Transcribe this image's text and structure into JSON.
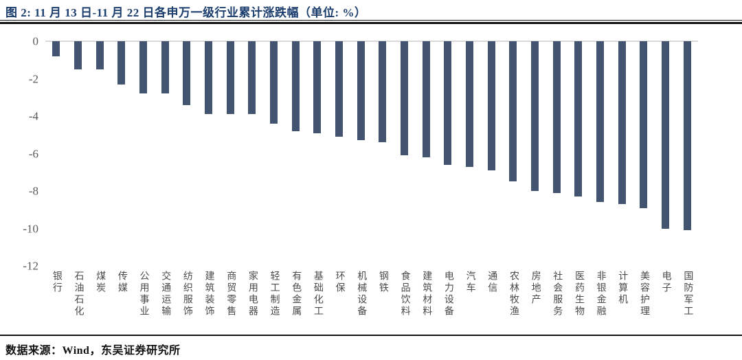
{
  "page": {
    "title": "图 2:  11 月 13 日-11 月 22 日各申万一级行业累计涨跌幅（单位: %）",
    "source_note": "数据来源：Wind，东吴证券研究所"
  },
  "colors": {
    "bar": "#42546F",
    "title_text": "#1C3E6E",
    "axis_text": "#595959",
    "zero_line": "#D9D9D9",
    "rule": "#111111"
  },
  "chart_data": {
    "type": "bar",
    "title": "11 月 13 日-11 月 22 日各申万一级行业累计涨跌幅",
    "unit": "%",
    "categories": [
      "银行",
      "石油石化",
      "煤炭",
      "传媒",
      "公用事业",
      "交通运输",
      "纺织服饰",
      "建筑装饰",
      "商贸零售",
      "家用电器",
      "轻工制造",
      "有色金属",
      "基础化工",
      "环保",
      "机械设备",
      "钢铁",
      "食品饮料",
      "建筑材料",
      "电力设备",
      "汽车",
      "通信",
      "农林牧渔",
      "房地产",
      "社会服务",
      "医药生物",
      "非银金融",
      "计算机",
      "美容护理",
      "电子",
      "国防军工"
    ],
    "values": [
      -0.8,
      -1.5,
      -1.5,
      -2.3,
      -2.8,
      -2.8,
      -3.4,
      -3.9,
      -3.9,
      -3.9,
      -4.4,
      -4.8,
      -4.9,
      -5.1,
      -5.3,
      -5.4,
      -6.1,
      -6.2,
      -6.6,
      -6.7,
      -6.9,
      -7.5,
      -8.0,
      -8.1,
      -8.3,
      -8.6,
      -8.7,
      -8.9,
      -10.0,
      -10.1
    ],
    "ylim": [
      -12,
      0
    ],
    "yticks": [
      0,
      -2,
      -4,
      -6,
      -8,
      -10,
      -12
    ],
    "grid": false,
    "legend": "none",
    "bar_color": "#42546F"
  }
}
